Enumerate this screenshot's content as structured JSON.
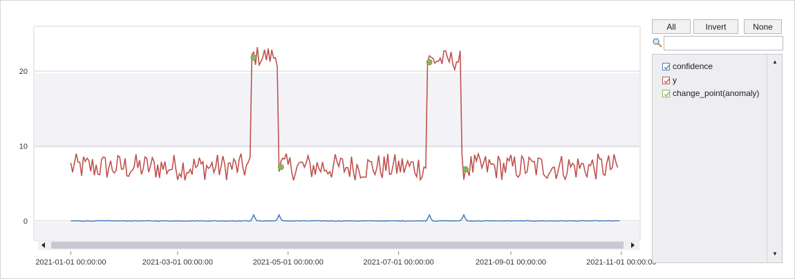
{
  "controls": {
    "all_label": "All",
    "invert_label": "Invert",
    "none_label": "None",
    "search_value": ""
  },
  "legend": [
    {
      "label": "confidence",
      "color": "#4a7fc1",
      "checked": true
    },
    {
      "label": "y",
      "color": "#c0504d",
      "checked": true
    },
    {
      "label": "change_point(anomaly)",
      "color": "#8db360",
      "checked": true
    }
  ],
  "chart_data": {
    "type": "line",
    "x_type": "date",
    "x_ticks": [
      "2021-01-01 00:00:00",
      "2021-03-01 00:00:00",
      "2021-05-01 00:00:00",
      "2021-07-01 00:00:00",
      "2021-09-01 00:00:00",
      "2021-11-01 00:00:00"
    ],
    "y_ticks": [
      "0",
      "10",
      "20"
    ],
    "xlim": [
      "2020-12-12",
      "2021-11-11"
    ],
    "ylim": [
      -2.5,
      26
    ],
    "grid": true,
    "legend_placement": "right",
    "colors": {
      "confidence": "#4a7fc1",
      "y": "#c0504d",
      "change_point": "#8db360",
      "band": "#f3f3f7"
    },
    "series": [
      {
        "name": "y",
        "x_start": "2021-01-01",
        "x_end": "2021-10-31",
        "segments": [
          {
            "from": "2021-01-01",
            "to": "2021-04-11",
            "level": 7.2,
            "amplitude": 1.8
          },
          {
            "from": "2021-04-11",
            "to": "2021-04-26",
            "level": 22.0,
            "amplitude": 1.4
          },
          {
            "from": "2021-04-26",
            "to": "2021-07-17",
            "level": 7.2,
            "amplitude": 1.8
          },
          {
            "from": "2021-07-17",
            "to": "2021-08-05",
            "level": 21.5,
            "amplitude": 1.4
          },
          {
            "from": "2021-08-05",
            "to": "2021-10-31",
            "level": 7.2,
            "amplitude": 1.8
          }
        ]
      },
      {
        "name": "confidence",
        "x_start": "2021-01-01",
        "x_end": "2021-10-31",
        "base": 0.0,
        "spikes": [
          {
            "x": "2021-04-12",
            "y": 0.8
          },
          {
            "x": "2021-04-26",
            "y": 0.8
          },
          {
            "x": "2021-07-18",
            "y": 0.8
          },
          {
            "x": "2021-08-06",
            "y": 0.8
          }
        ]
      },
      {
        "name": "change_point(anomaly)",
        "points": [
          {
            "x": "2021-04-12",
            "y": 21.8
          },
          {
            "x": "2021-04-27",
            "y": 7.2
          },
          {
            "x": "2021-07-18",
            "y": 21.2
          },
          {
            "x": "2021-08-07",
            "y": 6.9
          }
        ]
      }
    ]
  }
}
